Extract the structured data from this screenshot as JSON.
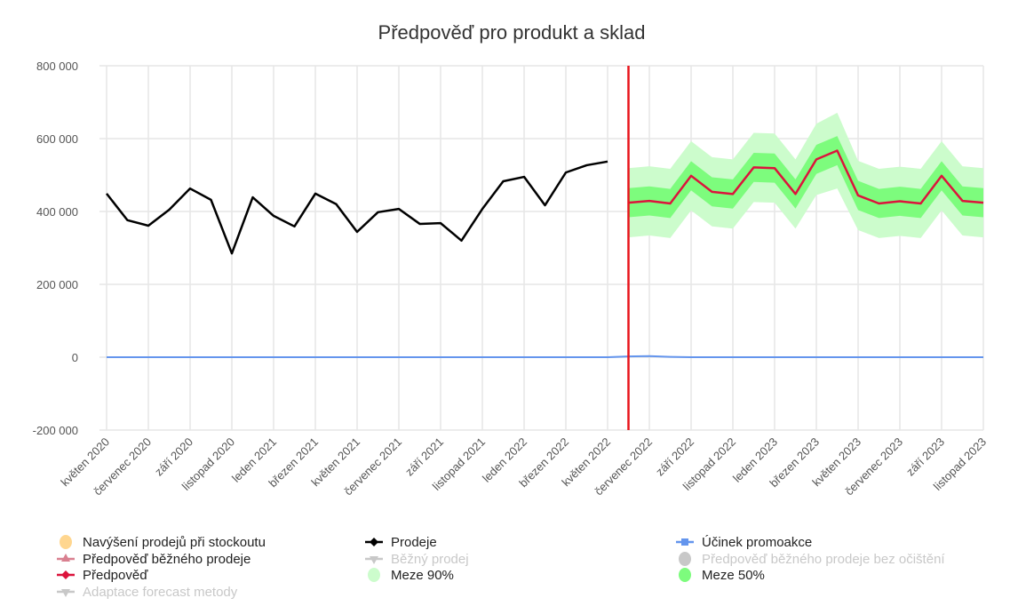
{
  "chart_data": {
    "type": "line",
    "title": "Předpověď pro produkt a sklad",
    "ylim": [
      -200000,
      800000
    ],
    "yticks": [
      800000,
      600000,
      400000,
      200000,
      0,
      -200000
    ],
    "ytick_labels": [
      "800 000",
      "600 000",
      "400 000",
      "200 000",
      "0",
      "-200 000"
    ],
    "xtick_labels": [
      "květen 2020",
      "červenec 2020",
      "září 2020",
      "listopad 2020",
      "leden 2021",
      "březen 2021",
      "květen 2021",
      "červenec 2021",
      "září 2021",
      "listopad 2021",
      "leden 2022",
      "březen 2022",
      "květen 2022",
      "červenec 2022",
      "září 2022",
      "listopad 2022",
      "leden 2023",
      "březen 2023",
      "květen 2023",
      "červenec 2023",
      "září 2023",
      "listopad 2023"
    ],
    "x_start": "2020-05",
    "x_end": "2023-11",
    "grid": true,
    "forecast_start_marker": "2022-06",
    "series": [
      {
        "name": "Prodeje",
        "color": "#000000",
        "start": "2020-05",
        "values": [
          449000,
          376000,
          361000,
          405000,
          463000,
          432000,
          285000,
          439000,
          388000,
          359000,
          449000,
          420000,
          344000,
          398000,
          407000,
          366000,
          368000,
          320000,
          407000,
          483000,
          495000,
          417000,
          507000,
          527000,
          537000
        ]
      },
      {
        "name": "Předpověď",
        "color": "#dc143c",
        "start": "2022-06",
        "values": [
          424000,
          429000,
          422000,
          498000,
          454000,
          448000,
          521000,
          519000,
          448000,
          543000,
          567000,
          444000,
          422000,
          428000,
          422000,
          498000,
          429000,
          424000
        ]
      },
      {
        "name": "Účinek promoakce",
        "color": "#6495ed",
        "start": "2020-05",
        "values": [
          0,
          0,
          0,
          0,
          0,
          0,
          0,
          0,
          0,
          0,
          0,
          0,
          0,
          0,
          0,
          0,
          0,
          0,
          0,
          0,
          0,
          0,
          0,
          0,
          0,
          2000,
          3000,
          1000,
          0,
          0,
          0,
          0,
          0,
          0,
          0,
          0,
          0,
          0,
          0,
          0,
          0,
          0,
          0
        ]
      }
    ],
    "bands": [
      {
        "name": "Meze 90%",
        "color": "#ccfccc",
        "start": "2022-06",
        "lower": [
          329000,
          334000,
          327000,
          403000,
          359000,
          353000,
          426000,
          424000,
          353000,
          445000,
          463000,
          349000,
          327000,
          333000,
          327000,
          403000,
          334000,
          329000
        ],
        "upper": [
          519000,
          524000,
          517000,
          593000,
          549000,
          543000,
          616000,
          614000,
          543000,
          641000,
          671000,
          539000,
          517000,
          523000,
          517000,
          593000,
          524000,
          519000
        ]
      },
      {
        "name": "Meze 50%",
        "color": "#7dfc7d",
        "start": "2022-06",
        "lower": [
          384000,
          389000,
          382000,
          458000,
          414000,
          408000,
          481000,
          479000,
          408000,
          503000,
          527000,
          404000,
          382000,
          388000,
          382000,
          458000,
          389000,
          384000
        ],
        "upper": [
          464000,
          469000,
          462000,
          538000,
          494000,
          488000,
          561000,
          559000,
          488000,
          583000,
          607000,
          484000,
          462000,
          468000,
          462000,
          538000,
          469000,
          464000
        ]
      }
    ],
    "legend": [
      {
        "label": "Navýšení prodejů při stockoutu",
        "color": "#ffd68f",
        "marker": "circle",
        "enabled": true
      },
      {
        "label": "Prodeje",
        "color": "#000000",
        "marker": "diamond",
        "enabled": true
      },
      {
        "label": "Účinek promoakce",
        "color": "#6495ed",
        "marker": "square",
        "enabled": true
      },
      {
        "label": "Předpověď běžného prodeje",
        "color": "#d98090",
        "marker": "triangle",
        "enabled": true
      },
      {
        "label": "Běžný prodej",
        "color": "#c8c8c8",
        "marker": "triangle-down",
        "enabled": false
      },
      {
        "label": "Předpověď běžného prodeje bez očištění",
        "color": "#c8c8c8",
        "marker": "circle",
        "enabled": false
      },
      {
        "label": "Předpověď",
        "color": "#dc143c",
        "marker": "diamond",
        "enabled": true
      },
      {
        "label": "Meze 90%",
        "color": "#ccfccc",
        "marker": "circle",
        "enabled": true
      },
      {
        "label": "Meze 50%",
        "color": "#7dfc7d",
        "marker": "circle",
        "enabled": true
      },
      {
        "label": "Adaptace forecast metody",
        "color": "#c8c8c8",
        "marker": "triangle-down",
        "enabled": false
      }
    ],
    "legend_position": "bottom"
  }
}
